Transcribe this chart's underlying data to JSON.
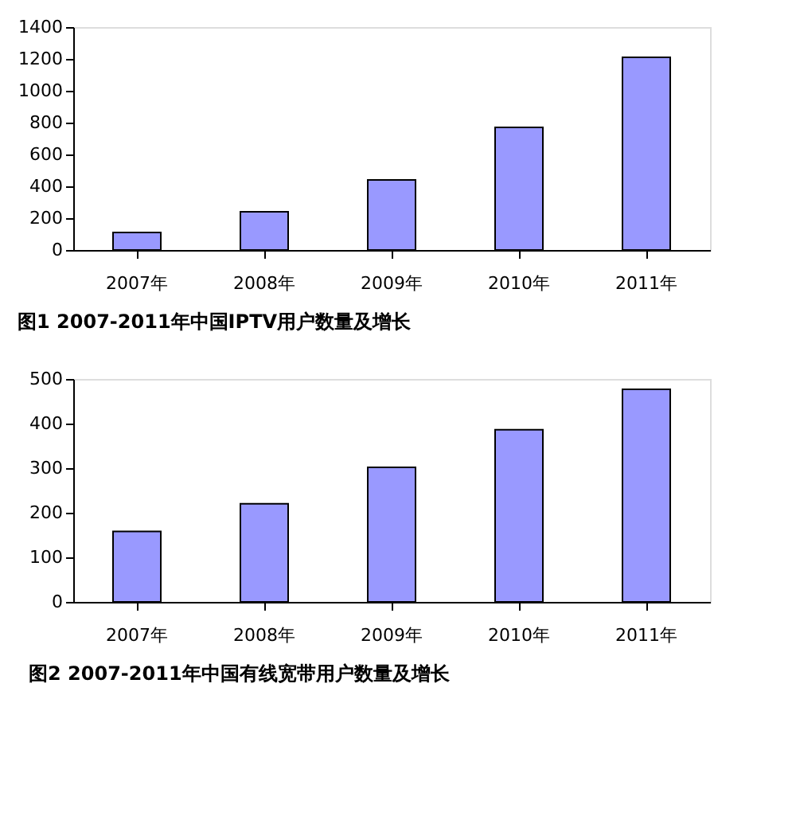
{
  "chart_data": [
    {
      "type": "bar",
      "title": "图1 2007-2011年中国IPTV用户数量及增长",
      "categories": [
        "2007年",
        "2008年",
        "2009年",
        "2010年",
        "2011年"
      ],
      "values": [
        110,
        240,
        440,
        770,
        1210
      ],
      "color": "#9999ff",
      "ylim": [
        0,
        1400
      ],
      "yticks": [
        0,
        200,
        400,
        600,
        800,
        1000,
        1200,
        1400
      ]
    },
    {
      "type": "bar",
      "title": "图2 2007-2011年中国有线宽带用户数量及增长",
      "categories": [
        "2007年",
        "2008年",
        "2009年",
        "2010年",
        "2011年"
      ],
      "values": [
        158,
        220,
        302,
        386,
        477
      ],
      "color": "#9999ff",
      "ylim": [
        0,
        500
      ],
      "yticks": [
        0,
        100,
        200,
        300,
        400,
        500
      ]
    }
  ]
}
